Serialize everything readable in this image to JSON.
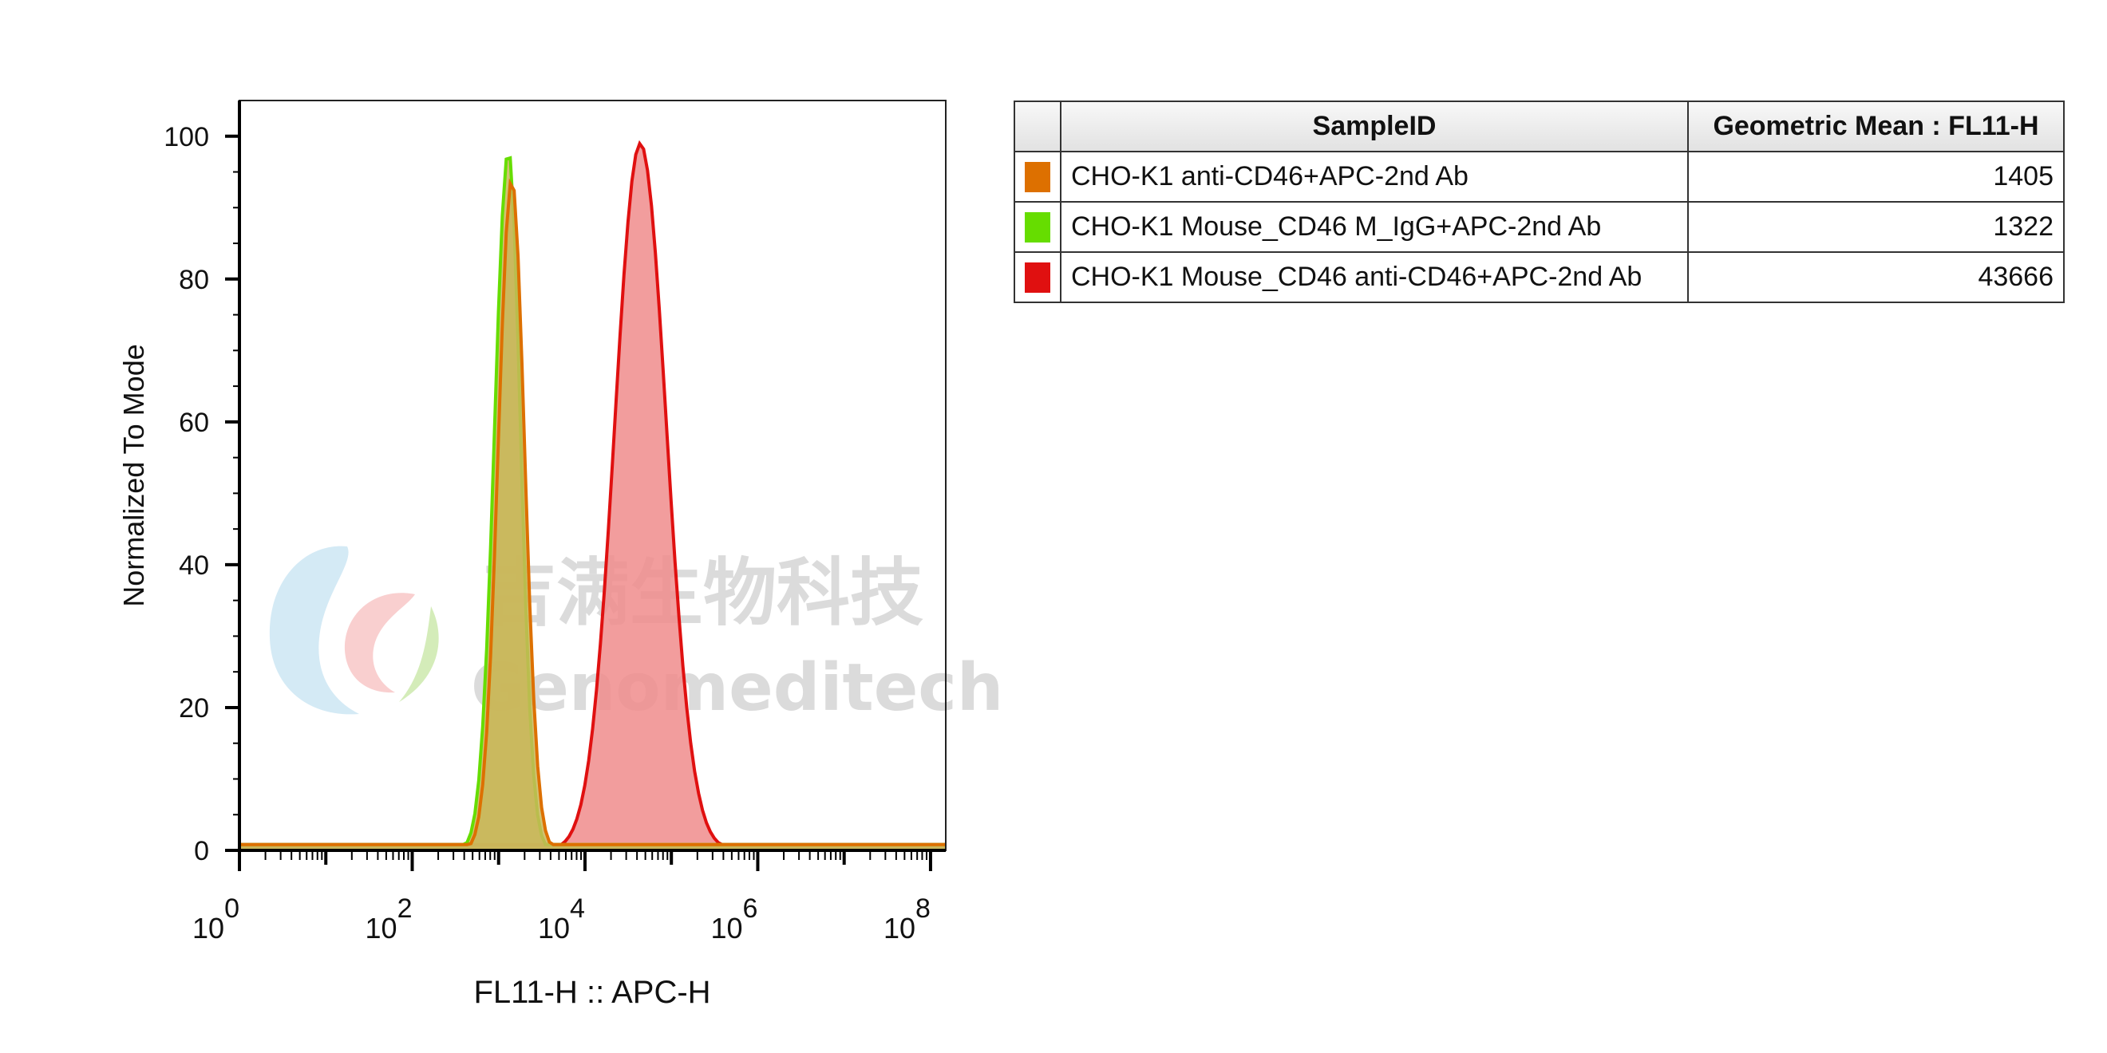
{
  "chart_data": {
    "type": "area",
    "title": "",
    "xlabel": "FL11-H :: APC-H",
    "ylabel": "Normalized To Mode",
    "xscale": "log",
    "xlim": [
      1,
      150000000
    ],
    "ylim": [
      0,
      105
    ],
    "yticks": [
      0,
      20,
      40,
      60,
      80,
      100
    ],
    "xticks": [
      {
        "base": "10",
        "exp": "0",
        "value": 1
      },
      {
        "base": "10",
        "exp": "2",
        "value": 100
      },
      {
        "base": "10",
        "exp": "4",
        "value": 10000
      },
      {
        "base": "10",
        "exp": "6",
        "value": 1000000
      },
      {
        "base": "10",
        "exp": "8",
        "value": 100000000
      }
    ],
    "grid": false,
    "legend": "table-right",
    "series": [
      {
        "name": "CHO-K1 Mouse_CD46 anti-CD46+APC-2nd Ab",
        "color": "#e01010",
        "fill": "#f08c8c",
        "peak_x": 43666,
        "peak_y": 99,
        "x_min": 5000,
        "x_max": 400000
      },
      {
        "name": "CHO-K1 Mouse_CD46 M_IgG+APC-2nd Ab",
        "color": "#66dd00",
        "fill": "#c9b75a",
        "peak_x": 1300,
        "peak_y": 98,
        "x_min": 400,
        "x_max": 3600
      },
      {
        "name": "CHO-K1 anti-CD46+APC-2nd Ab",
        "color": "#dd7000",
        "fill": "#c9b75a",
        "peak_x": 1420,
        "peak_y": 94,
        "x_min": 450,
        "x_max": 4200
      }
    ]
  },
  "legend_table": {
    "header_sample": "SampleID",
    "header_mean": "Geometric Mean : FL11-H",
    "rows": [
      {
        "color": "#dd7000",
        "sample": "CHO-K1 anti-CD46+APC-2nd Ab",
        "mean": "1405"
      },
      {
        "color": "#66dd00",
        "sample": "CHO-K1 Mouse_CD46 M_IgG+APC-2nd Ab",
        "mean": "1322"
      },
      {
        "color": "#e01010",
        "sample": "CHO-K1 Mouse_CD46 anti-CD46+APC-2nd Ab",
        "mean": "43666"
      }
    ]
  },
  "watermark": {
    "chinese": "吉满生物科技",
    "english": "Genomeditech"
  }
}
